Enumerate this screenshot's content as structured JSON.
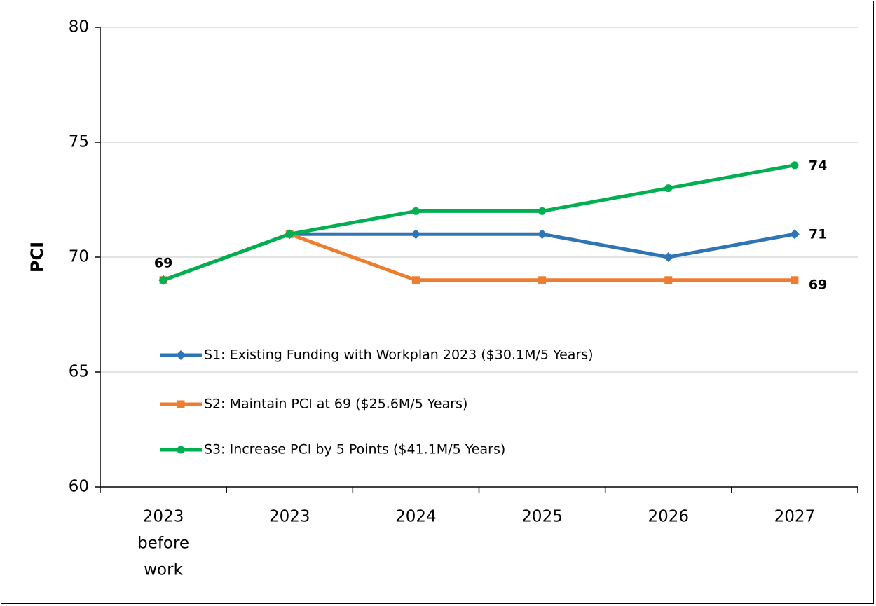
{
  "chart_data": {
    "type": "line",
    "title": "",
    "xlabel": "",
    "ylabel": "PCI",
    "categories": [
      [
        "2023",
        "before",
        "work"
      ],
      [
        "2023"
      ],
      [
        "2024"
      ],
      [
        "2025"
      ],
      [
        "2026"
      ],
      [
        "2027"
      ]
    ],
    "ylim": [
      60,
      80
    ],
    "yticks": [
      60,
      65,
      70,
      75,
      80
    ],
    "grid": "horizontal",
    "legend_position": "lower-left (inside plot)",
    "series": [
      {
        "name": "S1: Existing Funding with Workplan 2023 ($30.1M/5 Years)",
        "color": "#2E75B6",
        "marker": "diamond",
        "values": [
          69,
          71,
          71,
          71,
          70,
          71
        ]
      },
      {
        "name": "S2: Maintain PCI at 69 ($25.6M/5 Years)",
        "color": "#ED7D31",
        "marker": "square",
        "values": [
          69,
          71,
          69,
          69,
          69,
          69
        ]
      },
      {
        "name": "S3: Increase PCI by 5 Points ($41.1M/5 Years)",
        "color": "#00B050",
        "marker": "circle",
        "values": [
          69,
          71,
          72,
          72,
          73,
          74
        ]
      }
    ],
    "data_labels": [
      {
        "series": 2,
        "index": 0,
        "text": "69"
      },
      {
        "series": 2,
        "index": 5,
        "text": "74"
      },
      {
        "series": 0,
        "index": 5,
        "text": "71"
      },
      {
        "series": 1,
        "index": 5,
        "text": "69"
      }
    ]
  }
}
